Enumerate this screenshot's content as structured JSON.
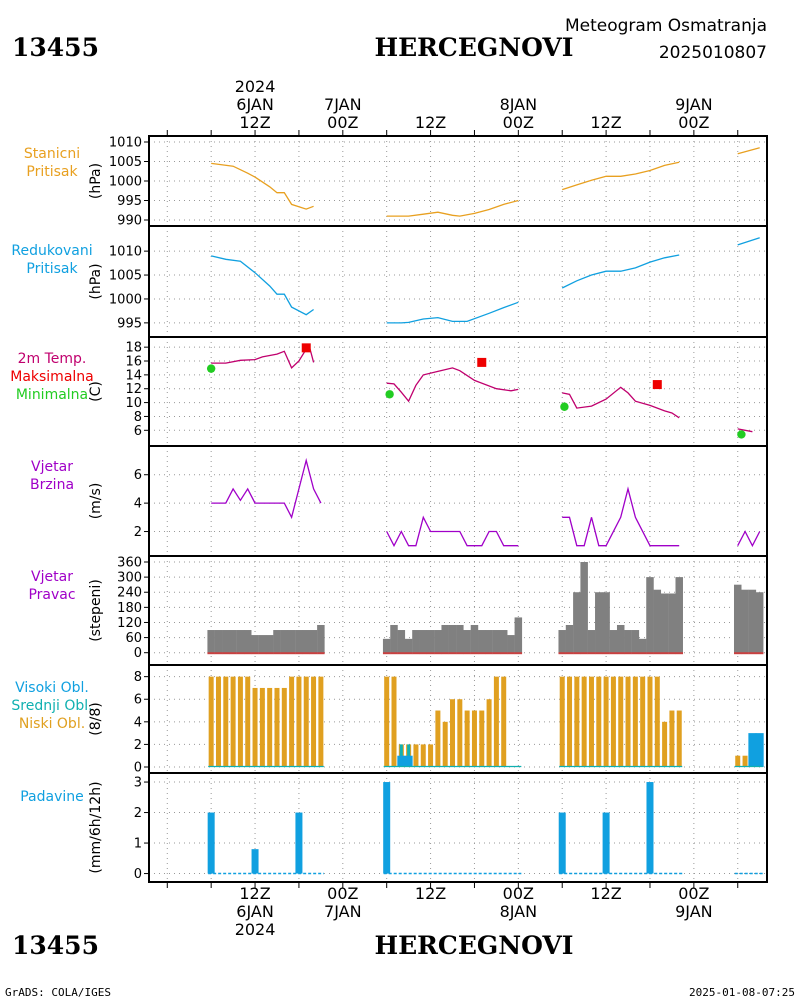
{
  "header": {
    "station_id": "13455",
    "station_name": "HERCEGNOVI",
    "title": "Meteogram Osmatranja",
    "run": "2025010807"
  },
  "footer": {
    "station_id": "13455",
    "station_name": "HERCEGNOVI",
    "credit": "GrADS: COLA/IGES",
    "timestamp": "2025-01-08-07:25"
  },
  "time_axis": {
    "top_labels": [
      {
        "t": 12,
        "lines": [
          "2024",
          "6JAN",
          "12Z"
        ]
      },
      {
        "t": 24,
        "lines": [
          "7JAN",
          "00Z"
        ]
      },
      {
        "t": 36,
        "lines": [
          "12Z"
        ]
      },
      {
        "t": 48,
        "lines": [
          "8JAN",
          "00Z"
        ]
      },
      {
        "t": 60,
        "lines": [
          "12Z"
        ]
      },
      {
        "t": 72,
        "lines": [
          "9JAN",
          "00Z"
        ]
      }
    ],
    "bottom_labels": [
      {
        "t": 12,
        "lines": [
          "12Z",
          "6JAN",
          "2024"
        ]
      },
      {
        "t": 24,
        "lines": [
          "00Z",
          "7JAN"
        ]
      },
      {
        "t": 36,
        "lines": [
          "12Z"
        ]
      },
      {
        "t": 48,
        "lines": [
          "00Z",
          "8JAN"
        ]
      },
      {
        "t": 60,
        "lines": [
          "12Z"
        ]
      },
      {
        "t": 72,
        "lines": [
          "00Z",
          "9JAN"
        ]
      }
    ]
  },
  "colors": {
    "pressure": "#e8a020",
    "reduced_pressure": "#10a0e0",
    "temperature": "#c0006e",
    "maximum": "#ee0000",
    "minimum": "#22cc22",
    "wind": "#a000c8",
    "direction_bar": "#808080",
    "direction_bar_edge": "#c84040",
    "low_cloud": "#e0a020",
    "mid_cloud": "#10b0b0",
    "high_cloud": "#10a0e0",
    "precip": "#10a0e0"
  },
  "chart_data": [
    {
      "type": "line",
      "name": "station_pressure",
      "label_lines": [
        "Stanicni",
        "Pritisak"
      ],
      "ylabel": "(hPa)",
      "yticks": [
        990,
        995,
        1000,
        1005,
        1010
      ],
      "ylim": [
        990,
        1010
      ],
      "segments": [
        [
          [
            6,
            1004.5
          ],
          [
            9,
            1003.8
          ],
          [
            11,
            1002
          ],
          [
            12,
            1001
          ],
          [
            14,
            998.5
          ],
          [
            15,
            997
          ],
          [
            16,
            997
          ],
          [
            17,
            994
          ],
          [
            19,
            992.8
          ],
          [
            20,
            993.5
          ]
        ],
        [
          [
            30,
            991
          ],
          [
            33,
            991
          ],
          [
            35,
            991.5
          ],
          [
            37,
            992
          ],
          [
            39,
            991.2
          ],
          [
            40,
            991
          ],
          [
            42,
            991.7
          ],
          [
            44,
            992.7
          ],
          [
            46,
            994
          ],
          [
            48,
            995
          ]
        ],
        [
          [
            54,
            997.8
          ],
          [
            56,
            999
          ],
          [
            58,
            1000.2
          ],
          [
            60,
            1001.2
          ],
          [
            62,
            1001.2
          ],
          [
            64,
            1001.8
          ],
          [
            66,
            1002.7
          ],
          [
            68,
            1004
          ],
          [
            70,
            1004.8
          ]
        ],
        [
          [
            78,
            1007
          ],
          [
            81,
            1008.5
          ]
        ]
      ]
    },
    {
      "type": "line",
      "name": "reduced_pressure",
      "label_lines": [
        "Redukovani",
        "Pritisak"
      ],
      "ylabel": "(hPa)",
      "yticks": [
        995,
        1000,
        1005,
        1010
      ],
      "ylim": [
        993.3,
        1014
      ],
      "segments": [
        [
          [
            6,
            1009
          ],
          [
            8,
            1008.3
          ],
          [
            10,
            1007.9
          ],
          [
            12,
            1005.5
          ],
          [
            14,
            1002.7
          ],
          [
            15,
            1001
          ],
          [
            16,
            1001
          ],
          [
            17,
            998.3
          ],
          [
            19,
            996.7
          ],
          [
            20,
            997.8
          ]
        ],
        [
          [
            30,
            995
          ],
          [
            32,
            995
          ],
          [
            33,
            995.1
          ],
          [
            35,
            995.8
          ],
          [
            37,
            996.1
          ],
          [
            39,
            995.3
          ],
          [
            41,
            995.3
          ],
          [
            44,
            997
          ],
          [
            46,
            998.2
          ],
          [
            48,
            999.3
          ]
        ],
        [
          [
            54,
            1002.3
          ],
          [
            56,
            1003.8
          ],
          [
            58,
            1005
          ],
          [
            60,
            1005.8
          ],
          [
            62,
            1005.8
          ],
          [
            64,
            1006.5
          ],
          [
            66,
            1007.7
          ],
          [
            68,
            1008.6
          ],
          [
            70,
            1009.2
          ]
        ],
        [
          [
            78,
            1011.3
          ],
          [
            81,
            1012.8
          ]
        ]
      ]
    },
    {
      "type": "line",
      "name": "temperature",
      "label_lines": [
        "2m Temp.",
        "Maksimalna",
        "Minimalna"
      ],
      "ylabel": "(C)",
      "yticks": [
        6,
        8,
        10,
        12,
        14,
        16,
        18
      ],
      "ylim": [
        4.6,
        18.6
      ],
      "segments": [
        [
          [
            6,
            15.7
          ],
          [
            8,
            15.7
          ],
          [
            10,
            16.1
          ],
          [
            12,
            16.2
          ],
          [
            13,
            16.6
          ],
          [
            15,
            17.0
          ],
          [
            16,
            17.4
          ],
          [
            17,
            15.0
          ],
          [
            18,
            16.0
          ],
          [
            19,
            17.7
          ],
          [
            19.5,
            17.8
          ],
          [
            20,
            15.8
          ]
        ],
        [
          [
            30,
            12.8
          ],
          [
            31,
            12.7
          ],
          [
            32,
            11.5
          ],
          [
            33,
            10.2
          ],
          [
            34,
            12.5
          ],
          [
            35,
            14.0
          ],
          [
            37,
            14.5
          ],
          [
            39,
            15.0
          ],
          [
            40,
            14.6
          ],
          [
            42,
            13.2
          ],
          [
            45,
            12.0
          ],
          [
            47,
            11.7
          ],
          [
            48,
            11.9
          ]
        ],
        [
          [
            54,
            11.4
          ],
          [
            55,
            11.2
          ],
          [
            56,
            9.2
          ],
          [
            58,
            9.5
          ],
          [
            60,
            10.5
          ],
          [
            62,
            12.2
          ],
          [
            63,
            11.4
          ],
          [
            64,
            10.2
          ],
          [
            66,
            9.6
          ],
          [
            68,
            8.8
          ],
          [
            69,
            8.5
          ],
          [
            70,
            7.8
          ]
        ],
        [
          [
            78,
            6.2
          ],
          [
            80,
            5.8
          ]
        ]
      ],
      "maximum": [
        [
          19,
          17.9
        ],
        [
          43,
          15.8
        ],
        [
          67,
          12.6
        ]
      ],
      "minimum": [
        [
          6,
          14.9
        ],
        [
          30.4,
          11.2
        ],
        [
          54.3,
          9.4
        ],
        [
          78.5,
          5.4
        ]
      ]
    },
    {
      "type": "line",
      "name": "wind_speed",
      "label_lines": [
        "Vjetar",
        "Brzina"
      ],
      "ylabel": "(m/s)",
      "yticks": [
        2,
        4,
        6
      ],
      "ylim": [
        0.7,
        7.6
      ],
      "segments": [
        [
          [
            6,
            4
          ],
          [
            8,
            4
          ],
          [
            9,
            5
          ],
          [
            10,
            4.2
          ],
          [
            11,
            5
          ],
          [
            12,
            4
          ],
          [
            16,
            4
          ],
          [
            17,
            3
          ],
          [
            18,
            5
          ],
          [
            19,
            7
          ],
          [
            20,
            5
          ],
          [
            21,
            4
          ]
        ],
        [
          [
            30,
            2
          ],
          [
            31,
            1
          ],
          [
            32,
            2
          ],
          [
            33,
            1
          ],
          [
            34,
            1
          ],
          [
            35,
            3
          ],
          [
            36,
            2
          ],
          [
            38,
            2
          ],
          [
            40,
            2
          ],
          [
            41,
            1
          ],
          [
            43,
            1
          ],
          [
            44,
            2
          ],
          [
            45,
            2
          ],
          [
            46,
            1
          ],
          [
            48,
            1
          ]
        ],
        [
          [
            54,
            3
          ],
          [
            55,
            3
          ],
          [
            56,
            1
          ],
          [
            57,
            1
          ],
          [
            58,
            3
          ],
          [
            59,
            1
          ],
          [
            60,
            1
          ],
          [
            62,
            3
          ],
          [
            63,
            5
          ],
          [
            64,
            3
          ],
          [
            66,
            1
          ],
          [
            70,
            1
          ]
        ],
        [
          [
            78,
            1
          ],
          [
            79,
            2
          ],
          [
            80,
            1
          ],
          [
            81,
            2
          ]
        ]
      ]
    },
    {
      "type": "bar",
      "name": "wind_direction",
      "label_lines": [
        "Vjetar",
        "Pravac"
      ],
      "ylabel": "(stepeni)",
      "yticks": [
        0,
        60,
        120,
        180,
        240,
        300,
        360
      ],
      "ylim": [
        -25,
        360
      ],
      "x": [
        6,
        7,
        8,
        9,
        10,
        11,
        12,
        13,
        14,
        15,
        16,
        17,
        18,
        19,
        20,
        21,
        30,
        31,
        32,
        33,
        34,
        35,
        36,
        37,
        38,
        39,
        40,
        41,
        42,
        43,
        44,
        45,
        46,
        47,
        48,
        54,
        55,
        56,
        57,
        58,
        59,
        60,
        61,
        62,
        63,
        64,
        65,
        66,
        67,
        68,
        69,
        70,
        78,
        79,
        80,
        81
      ],
      "values": [
        90,
        90,
        90,
        90,
        90,
        90,
        70,
        70,
        70,
        90,
        90,
        90,
        90,
        90,
        90,
        110,
        55,
        110,
        90,
        55,
        90,
        90,
        90,
        90,
        110,
        110,
        110,
        90,
        110,
        90,
        90,
        90,
        90,
        70,
        140,
        90,
        110,
        240,
        360,
        90,
        240,
        240,
        90,
        110,
        90,
        90,
        55,
        300,
        250,
        235,
        235,
        300,
        270,
        250,
        250,
        240
      ]
    },
    {
      "type": "bar",
      "name": "cloud_cover",
      "label_lines": [
        "Visoki Obl.",
        "Srednji Obl.",
        "Niski Obl."
      ],
      "ylabel": "(8/8)",
      "yticks": [
        0,
        2,
        4,
        6,
        8
      ],
      "ylim": [
        0,
        8.5
      ],
      "x": [
        6,
        7,
        8,
        9,
        10,
        11,
        12,
        13,
        14,
        15,
        16,
        17,
        18,
        19,
        20,
        21,
        30,
        31,
        32,
        33,
        34,
        35,
        36,
        37,
        38,
        39,
        40,
        41,
        42,
        43,
        44,
        45,
        46,
        47,
        48,
        54,
        55,
        56,
        57,
        58,
        59,
        60,
        61,
        62,
        63,
        64,
        65,
        66,
        67,
        68,
        69,
        70,
        78,
        79,
        80,
        81
      ],
      "series": [
        {
          "name": "Niski Obl.",
          "values": [
            8,
            8,
            8,
            8,
            8,
            8,
            7,
            7,
            7,
            7,
            7,
            8,
            8,
            8,
            8,
            8,
            8,
            8,
            2,
            2,
            2,
            2,
            2,
            5,
            4,
            6,
            6,
            5,
            5,
            5,
            6,
            8,
            8,
            0,
            0,
            8,
            8,
            8,
            8,
            8,
            8,
            8,
            8,
            8,
            8,
            8,
            8,
            8,
            8,
            4,
            5,
            5,
            1,
            1,
            1,
            1
          ]
        },
        {
          "name": "Srednji Obl.",
          "values": [
            0,
            0,
            0,
            0,
            0,
            0,
            0,
            0,
            0,
            0,
            0,
            0,
            0,
            0,
            0,
            0,
            0,
            0,
            2,
            2,
            0,
            0,
            0,
            0,
            0,
            0,
            0,
            0,
            0,
            0,
            0,
            0,
            0,
            0,
            0,
            0,
            0,
            0,
            0,
            0,
            0,
            0,
            0,
            0,
            0,
            0,
            0,
            0,
            0,
            0,
            0,
            0,
            0,
            0,
            0,
            0
          ]
        },
        {
          "name": "Visoki Obl.",
          "values": [
            0,
            0,
            0,
            0,
            0,
            0,
            0,
            0,
            0,
            0,
            0,
            0,
            0,
            0,
            0,
            0,
            0,
            0,
            1,
            1,
            0,
            0,
            0,
            0,
            0,
            0,
            0,
            0,
            0,
            0,
            0,
            0,
            0,
            0,
            0,
            0,
            0,
            0,
            0,
            0,
            0,
            0,
            0,
            0,
            0,
            0,
            0,
            0,
            0,
            0,
            0,
            0,
            0,
            0,
            3,
            3
          ]
        }
      ]
    },
    {
      "type": "bar",
      "name": "precipitation",
      "label_lines": [
        "Padavine"
      ],
      "ylabel": "(mm/6h/12h)",
      "yticks": [
        0,
        1,
        2,
        3
      ],
      "ylim": [
        -0.08,
        3.1
      ],
      "x": [
        6,
        12,
        18,
        30,
        54,
        60,
        66
      ],
      "values": [
        2,
        0.8,
        2,
        3,
        2,
        2,
        3
      ]
    }
  ]
}
